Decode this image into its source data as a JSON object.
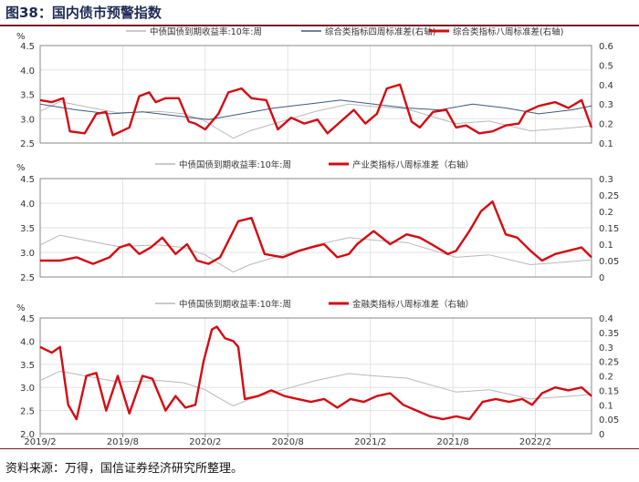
{
  "figure": {
    "title": "图38：国内债市预警指数",
    "source": "资料来源：万得，国信证券经济研究所整理。"
  },
  "x_axis": {
    "ticks": [
      "2019/2",
      "2019/8",
      "2020/2",
      "2020/8",
      "2021/2",
      "2021/8",
      "2022/2"
    ]
  },
  "colors": {
    "yield": "#b8b8b8",
    "weekly4": "#3d5a80",
    "weekly8": "#d40b12"
  },
  "chart_data": [
    {
      "type": "line",
      "left_unit": "%",
      "ylim_left": [
        2.5,
        4.5
      ],
      "yticks_left": [
        "2.5",
        "3.0",
        "3.5",
        "4.0",
        "4.5"
      ],
      "ylim_right": [
        0.1,
        0.6
      ],
      "yticks_right": [
        "0.1",
        "0.2",
        "0.3",
        "0.4",
        "0.5",
        "0.6"
      ],
      "grid": true,
      "legend_position": "top",
      "series": [
        {
          "name": "中债国债到期收益率:10年:周",
          "axis": "left",
          "color": "#b8b8b8",
          "x": [
            2019.08,
            2019.2,
            2019.35,
            2019.55,
            2019.8,
            2019.95,
            2020.08,
            2020.15,
            2020.25,
            2020.35,
            2020.55,
            2020.75,
            2020.95,
            2021.1,
            2021.3,
            2021.45,
            2021.6,
            2021.8,
            2022.05,
            2022.25,
            2022.42
          ],
          "y": [
            3.15,
            3.35,
            3.25,
            3.12,
            3.15,
            3.1,
            2.95,
            2.8,
            2.6,
            2.75,
            2.95,
            3.15,
            3.3,
            3.25,
            3.2,
            3.05,
            2.9,
            2.95,
            2.75,
            2.8,
            2.85
          ]
        },
        {
          "name": "综合类指标四周标准差(右轴)",
          "axis": "right",
          "color": "#3d5a80",
          "x": [
            2019.08,
            2019.3,
            2019.5,
            2019.7,
            2019.9,
            2020.1,
            2020.3,
            2020.5,
            2020.7,
            2020.9,
            2021.1,
            2021.3,
            2021.5,
            2021.7,
            2021.9,
            2022.1,
            2022.3,
            2022.42
          ],
          "y": [
            0.3,
            0.27,
            0.25,
            0.26,
            0.24,
            0.22,
            0.25,
            0.28,
            0.3,
            0.32,
            0.3,
            0.28,
            0.27,
            0.3,
            0.28,
            0.25,
            0.27,
            0.29
          ]
        },
        {
          "name": "综合类指标八周标准差(右轴)",
          "axis": "right",
          "color": "#d40b12",
          "x": [
            2019.08,
            2019.15,
            2019.22,
            2019.26,
            2019.35,
            2019.42,
            2019.48,
            2019.52,
            2019.62,
            2019.68,
            2019.74,
            2019.78,
            2019.84,
            2019.92,
            2019.98,
            2020.02,
            2020.08,
            2020.16,
            2020.22,
            2020.3,
            2020.36,
            2020.45,
            2020.52,
            2020.6,
            2020.68,
            2020.76,
            2020.82,
            2020.9,
            2020.98,
            2021.05,
            2021.12,
            2021.18,
            2021.26,
            2021.33,
            2021.38,
            2021.46,
            2021.54,
            2021.6,
            2021.66,
            2021.74,
            2021.82,
            2021.9,
            2021.98,
            2022.02,
            2022.1,
            2022.2,
            2022.28,
            2022.36,
            2022.42
          ],
          "y": [
            0.32,
            0.31,
            0.33,
            0.16,
            0.15,
            0.25,
            0.26,
            0.14,
            0.18,
            0.34,
            0.36,
            0.31,
            0.33,
            0.33,
            0.21,
            0.2,
            0.17,
            0.25,
            0.36,
            0.38,
            0.33,
            0.32,
            0.17,
            0.23,
            0.2,
            0.22,
            0.15,
            0.21,
            0.27,
            0.2,
            0.25,
            0.38,
            0.4,
            0.21,
            0.18,
            0.26,
            0.27,
            0.18,
            0.19,
            0.15,
            0.16,
            0.19,
            0.2,
            0.26,
            0.29,
            0.31,
            0.28,
            0.32,
            0.18
          ]
        }
      ]
    },
    {
      "type": "line",
      "left_unit": "%",
      "ylim_left": [
        2.5,
        4.5
      ],
      "yticks_left": [
        "2.5",
        "3.0",
        "3.5",
        "4.0",
        "4.5"
      ],
      "ylim_right": [
        0.0,
        0.3
      ],
      "yticks_right": [
        "0",
        "0.05",
        "0.1",
        "0.15",
        "0.2",
        "0.25",
        "0.3"
      ],
      "grid": true,
      "legend_position": "top",
      "series": [
        {
          "name": "中债国债到期收益率:10年:周",
          "axis": "left",
          "color": "#b8b8b8",
          "x": [
            2019.08,
            2019.2,
            2019.35,
            2019.55,
            2019.8,
            2019.95,
            2020.08,
            2020.15,
            2020.25,
            2020.35,
            2020.55,
            2020.75,
            2020.95,
            2021.1,
            2021.3,
            2021.45,
            2021.6,
            2021.8,
            2022.05,
            2022.25,
            2022.42
          ],
          "y": [
            3.15,
            3.35,
            3.25,
            3.12,
            3.15,
            3.1,
            2.95,
            2.8,
            2.6,
            2.75,
            2.95,
            3.15,
            3.3,
            3.25,
            3.2,
            3.05,
            2.9,
            2.95,
            2.75,
            2.8,
            2.85
          ]
        },
        {
          "name": "产业类指标八周标准差（右轴）",
          "axis": "right",
          "color": "#d40b12",
          "x": [
            2019.08,
            2019.2,
            2019.3,
            2019.4,
            2019.5,
            2019.56,
            2019.62,
            2019.68,
            2019.75,
            2019.82,
            2019.9,
            2019.97,
            2020.03,
            2020.1,
            2020.17,
            2020.24,
            2020.28,
            2020.36,
            2020.44,
            2020.55,
            2020.65,
            2020.72,
            2020.8,
            2020.88,
            2020.95,
            2021.0,
            2021.1,
            2021.2,
            2021.3,
            2021.38,
            2021.45,
            2021.55,
            2021.6,
            2021.68,
            2021.75,
            2021.82,
            2021.9,
            2021.97,
            2022.05,
            2022.12,
            2022.2,
            2022.28,
            2022.36,
            2022.42
          ],
          "y": [
            0.05,
            0.05,
            0.06,
            0.04,
            0.06,
            0.09,
            0.1,
            0.07,
            0.09,
            0.12,
            0.07,
            0.1,
            0.05,
            0.04,
            0.06,
            0.13,
            0.17,
            0.18,
            0.07,
            0.06,
            0.08,
            0.09,
            0.1,
            0.06,
            0.07,
            0.1,
            0.14,
            0.1,
            0.13,
            0.12,
            0.1,
            0.07,
            0.08,
            0.14,
            0.2,
            0.23,
            0.13,
            0.12,
            0.08,
            0.05,
            0.07,
            0.08,
            0.09,
            0.06
          ]
        }
      ]
    },
    {
      "type": "line",
      "left_unit": "%",
      "ylim_left": [
        2.0,
        4.5
      ],
      "yticks_left": [
        "2.0",
        "2.5",
        "3.0",
        "3.5",
        "4.0",
        "4.5"
      ],
      "ylim_right": [
        0.0,
        0.4
      ],
      "yticks_right": [
        "0",
        "0.05",
        "0.1",
        "0.15",
        "0.2",
        "0.25",
        "0.3",
        "0.35",
        "0.4"
      ],
      "grid": true,
      "legend_position": "top",
      "series": [
        {
          "name": "中债国债到期收益率:10年:周",
          "axis": "left",
          "color": "#b8b8b8",
          "x": [
            2019.08,
            2019.2,
            2019.35,
            2019.55,
            2019.8,
            2019.95,
            2020.08,
            2020.15,
            2020.25,
            2020.35,
            2020.55,
            2020.75,
            2020.95,
            2021.1,
            2021.3,
            2021.45,
            2021.6,
            2021.8,
            2022.05,
            2022.25,
            2022.42
          ],
          "y": [
            3.15,
            3.35,
            3.25,
            3.12,
            3.15,
            3.1,
            2.95,
            2.8,
            2.6,
            2.75,
            2.95,
            3.15,
            3.3,
            3.25,
            3.2,
            3.05,
            2.9,
            2.95,
            2.75,
            2.8,
            2.85
          ]
        },
        {
          "name": "金融类指标八周标准差（右轴）",
          "axis": "right",
          "color": "#d40b12",
          "x": [
            2019.08,
            2019.15,
            2019.2,
            2019.25,
            2019.3,
            2019.36,
            2019.42,
            2019.48,
            2019.55,
            2019.62,
            2019.7,
            2019.76,
            2019.84,
            2019.9,
            2019.96,
            2020.02,
            2020.07,
            2020.12,
            2020.15,
            2020.2,
            2020.25,
            2020.28,
            2020.32,
            2020.4,
            2020.48,
            2020.56,
            2020.64,
            2020.72,
            2020.8,
            2020.88,
            2020.96,
            2021.04,
            2021.12,
            2021.2,
            2021.28,
            2021.36,
            2021.44,
            2021.52,
            2021.6,
            2021.68,
            2021.76,
            2021.84,
            2021.92,
            2022.0,
            2022.06,
            2022.12,
            2022.2,
            2022.28,
            2022.36,
            2022.42
          ],
          "y": [
            0.3,
            0.28,
            0.3,
            0.1,
            0.05,
            0.2,
            0.21,
            0.08,
            0.2,
            0.07,
            0.2,
            0.19,
            0.08,
            0.13,
            0.09,
            0.1,
            0.25,
            0.36,
            0.37,
            0.33,
            0.32,
            0.3,
            0.12,
            0.13,
            0.15,
            0.13,
            0.12,
            0.11,
            0.12,
            0.09,
            0.12,
            0.11,
            0.13,
            0.14,
            0.1,
            0.08,
            0.06,
            0.05,
            0.06,
            0.05,
            0.11,
            0.12,
            0.11,
            0.12,
            0.1,
            0.14,
            0.16,
            0.15,
            0.16,
            0.13
          ]
        }
      ]
    }
  ]
}
